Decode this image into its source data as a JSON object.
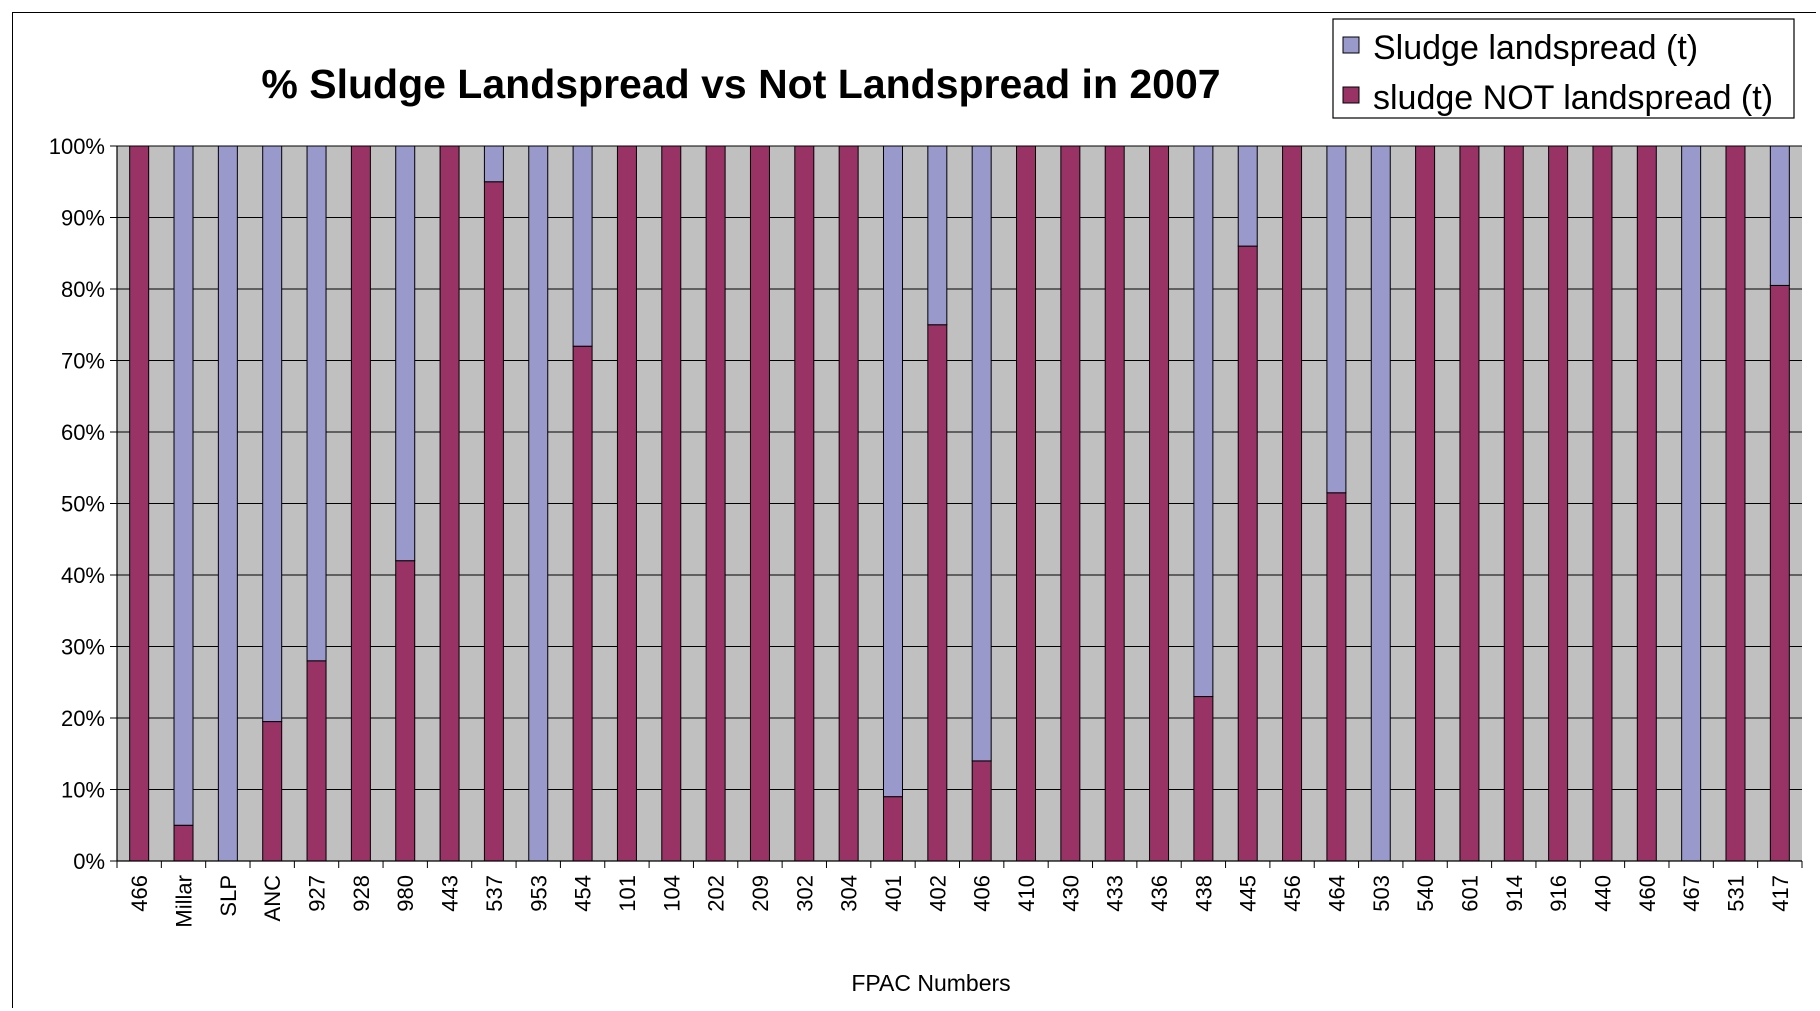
{
  "chart_data": {
    "type": "bar",
    "stacked": "percent",
    "title": "% Sludge Landspread vs Not Landspread in 2007",
    "xlabel": "FPAC Numbers",
    "ylabel": "",
    "ylim": [
      0,
      100
    ],
    "y_ticks": [
      "0%",
      "10%",
      "20%",
      "30%",
      "40%",
      "50%",
      "60%",
      "70%",
      "80%",
      "90%",
      "100%"
    ],
    "grid": true,
    "legend_position": "top-right",
    "categories": [
      "466",
      "Millar",
      "SLP",
      "ANC",
      "927",
      "928",
      "980",
      "443",
      "537",
      "953",
      "454",
      "101",
      "104",
      "202",
      "209",
      "302",
      "304",
      "401",
      "402",
      "406",
      "410",
      "430",
      "433",
      "436",
      "438",
      "445",
      "456",
      "464",
      "503",
      "540",
      "601",
      "914",
      "916",
      "440",
      "460",
      "467",
      "531",
      "417"
    ],
    "series": [
      {
        "name": "Sludge landspread (t)",
        "color": "#9999cc",
        "values": [
          0,
          95,
          100,
          80.5,
          72,
          0,
          58,
          0,
          5,
          100,
          28,
          0,
          0,
          0,
          0,
          0,
          0,
          91,
          25,
          86,
          0,
          0,
          0,
          0,
          77,
          14,
          0,
          48.5,
          100,
          0,
          0,
          0,
          0,
          0,
          0,
          100,
          0,
          19.5
        ]
      },
      {
        "name": "sludge NOT landspread (t)",
        "color": "#993366",
        "values": [
          100,
          5,
          0,
          19.5,
          28,
          100,
          42,
          100,
          95,
          0,
          72,
          100,
          100,
          100,
          100,
          100,
          100,
          9,
          75,
          14,
          100,
          100,
          100,
          100,
          23,
          86,
          100,
          51.5,
          0,
          100,
          100,
          100,
          100,
          100,
          100,
          0,
          100,
          80.5
        ]
      }
    ]
  }
}
